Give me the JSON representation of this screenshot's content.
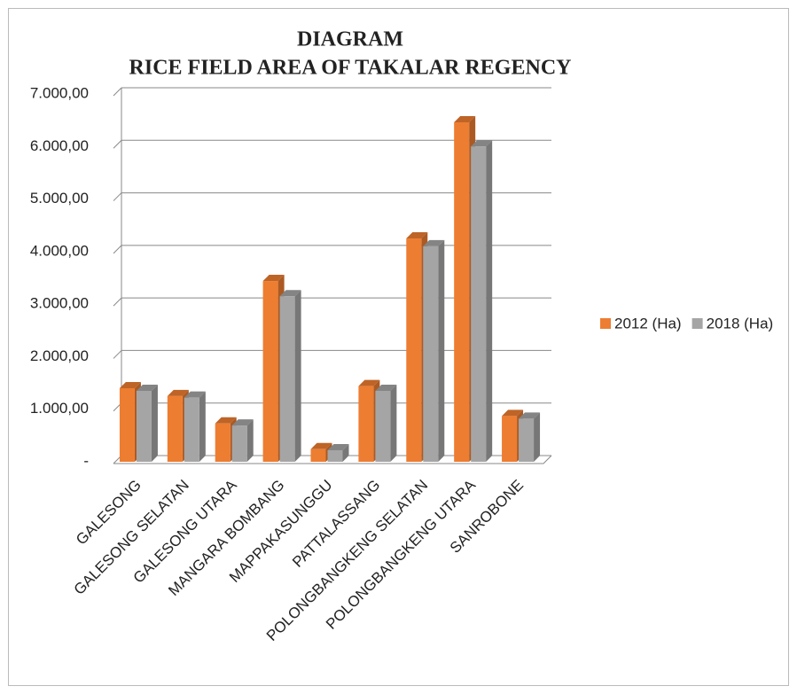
{
  "chart_data": {
    "type": "bar3d",
    "title": [
      "DIAGRAM",
      "RICE FIELD AREA OF TAKALAR REGENCY"
    ],
    "categories": [
      "GALESONG",
      "GALESONG SELATAN",
      "GALESONG UTARA",
      "MANGARA BOMBANG",
      "MAPPAKASUNGGU",
      "PATTALASSANG",
      "POLONGBANGKENG SELATAN",
      "POLONGBANGKENG UTARA",
      "SANROBONE"
    ],
    "series": [
      {
        "name": "2012 (Ha)",
        "color": "#ED7D31",
        "values": [
          1400,
          1250,
          730,
          3440,
          240,
          1440,
          4250,
          6460,
          870
        ]
      },
      {
        "name": "2018 (Ha)",
        "color": "#A5A5A5",
        "values": [
          1350,
          1220,
          690,
          3150,
          220,
          1350,
          4100,
          6000,
          820
        ]
      }
    ],
    "ylim": [
      0,
      7000
    ],
    "yticks": [
      {
        "value": 0,
        "label": "-"
      },
      {
        "value": 1000,
        "label": "1.000,00"
      },
      {
        "value": 2000,
        "label": "2.000,00"
      },
      {
        "value": 3000,
        "label": "3.000,00"
      },
      {
        "value": 4000,
        "label": "4.000,00"
      },
      {
        "value": 5000,
        "label": "5.000,00"
      },
      {
        "value": 6000,
        "label": "6.000,00"
      },
      {
        "value": 7000,
        "label": "7.000,00"
      }
    ],
    "grid": true,
    "legend": "right"
  }
}
